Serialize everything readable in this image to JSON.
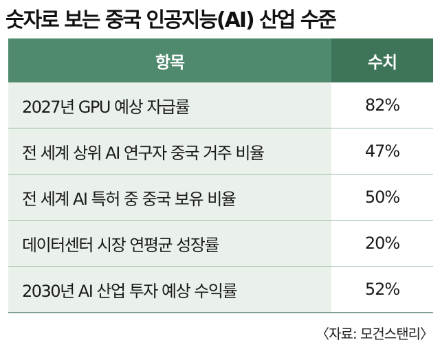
{
  "title": "숫자로 보는 중국 인공지능(AI) 산업 수준",
  "table": {
    "headers": {
      "item": "항목",
      "value": "수치"
    },
    "rows": [
      {
        "item": "2027년 GPU 예상 자급률",
        "value": "82%"
      },
      {
        "item": "전 세계 상위 AI 연구자 중국 거주 비율",
        "value": "47%"
      },
      {
        "item": "전 세계 AI 특허 중 중국 보유 비율",
        "value": "50%"
      },
      {
        "item": "데이터센터 시장 연평균 성장률",
        "value": "20%"
      },
      {
        "item": "2030년 AI 산업 투자 예상 수익률",
        "value": "52%"
      }
    ]
  },
  "source": "〈자료: 모건스탠리〉",
  "colors": {
    "header_item_bg": "#4f8a6e",
    "header_value_bg": "#3e7559",
    "row_item_bg": "#eaf1ea"
  }
}
